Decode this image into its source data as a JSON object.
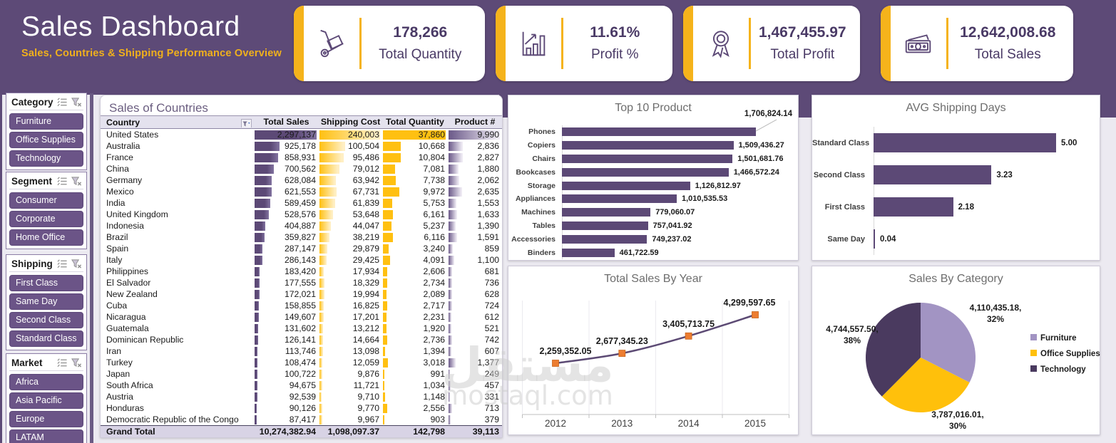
{
  "header": {
    "title": "Sales Dashboard",
    "subtitle": "Sales, Countries & Shipping Performance Overview",
    "kpis": [
      {
        "icon": "hand-truck-icon",
        "value": "178,266",
        "label": "Total Quantity"
      },
      {
        "icon": "growth-chart-icon",
        "value": "11.61%",
        "label": "Profit %"
      },
      {
        "icon": "award-badge-icon",
        "value": "1,467,455.97",
        "label": "Total Profit"
      },
      {
        "icon": "banknotes-icon",
        "value": "12,642,008.68",
        "label": "Total Sales"
      }
    ]
  },
  "slicers": [
    {
      "title": "Category",
      "items": [
        "Furniture",
        "Office Supplies",
        "Technology"
      ]
    },
    {
      "title": "Segment",
      "items": [
        "Consumer",
        "Corporate",
        "Home Office"
      ]
    },
    {
      "title": "Shipping",
      "items": [
        "First Class",
        "Same Day",
        "Second Class",
        "Standard Class"
      ]
    },
    {
      "title": "Market",
      "items": [
        "Africa",
        "Asia Pacific",
        "Europe",
        "LATAM"
      ]
    }
  ],
  "table": {
    "title": "Sales of Countries",
    "columns": [
      "Country",
      "Total Sales",
      "Shipping Cost",
      "Total Quantity",
      "Product #"
    ],
    "rows": [
      [
        "United States",
        "2,297,137",
        "240,003",
        "37,860",
        "9,990"
      ],
      [
        "Australia",
        "925,178",
        "100,504",
        "10,668",
        "2,836"
      ],
      [
        "France",
        "858,931",
        "95,486",
        "10,804",
        "2,827"
      ],
      [
        "China",
        "700,562",
        "79,012",
        "7,081",
        "1,880"
      ],
      [
        "Germany",
        "628,084",
        "63,942",
        "7,738",
        "2,062"
      ],
      [
        "Mexico",
        "621,553",
        "67,731",
        "9,972",
        "2,635"
      ],
      [
        "India",
        "589,459",
        "61,839",
        "5,753",
        "1,553"
      ],
      [
        "United Kingdom",
        "528,576",
        "53,648",
        "6,161",
        "1,633"
      ],
      [
        "Indonesia",
        "404,887",
        "44,047",
        "5,237",
        "1,390"
      ],
      [
        "Brazil",
        "359,827",
        "38,219",
        "6,116",
        "1,591"
      ],
      [
        "Spain",
        "287,147",
        "29,879",
        "3,240",
        "859"
      ],
      [
        "Italy",
        "286,143",
        "29,425",
        "4,091",
        "1,100"
      ],
      [
        "Philippines",
        "183,420",
        "17,934",
        "2,606",
        "681"
      ],
      [
        "El Salvador",
        "177,555",
        "18,329",
        "2,734",
        "736"
      ],
      [
        "New Zealand",
        "172,021",
        "19,994",
        "2,089",
        "628"
      ],
      [
        "Cuba",
        "158,855",
        "16,825",
        "2,717",
        "724"
      ],
      [
        "Nicaragua",
        "149,607",
        "17,201",
        "2,231",
        "612"
      ],
      [
        "Guatemala",
        "131,602",
        "13,212",
        "1,920",
        "521"
      ],
      [
        "Dominican Republic",
        "126,141",
        "14,664",
        "2,736",
        "742"
      ],
      [
        "Iran",
        "113,746",
        "13,098",
        "1,394",
        "607"
      ],
      [
        "Turkey",
        "108,474",
        "12,059",
        "3,018",
        "1,377"
      ],
      [
        "Japan",
        "100,722",
        "9,876",
        "991",
        "249"
      ],
      [
        "South Africa",
        "94,675",
        "11,721",
        "1,034",
        "457"
      ],
      [
        "Austria",
        "92,539",
        "9,710",
        "1,148",
        "331"
      ],
      [
        "Honduras",
        "90,126",
        "9,770",
        "2,556",
        "713"
      ],
      [
        "Democratic Republic of the Congo",
        "87,417",
        "9,967",
        "903",
        "379"
      ]
    ],
    "grand_total": [
      "Grand Total",
      "10,274,382.94",
      "1,098,097.37",
      "142,798",
      "39,113"
    ]
  },
  "chart_data": [
    {
      "type": "bar",
      "orientation": "horizontal",
      "title": "Top 10 Product",
      "categories": [
        "Phones",
        "Copiers",
        "Chairs",
        "Bookcases",
        "Storage",
        "Appliances",
        "Machines",
        "Tables",
        "Accessories",
        "Binders"
      ],
      "values": [
        1706824.14,
        1509436.27,
        1501681.76,
        1466572.24,
        1126812.97,
        1010535.53,
        779060.07,
        757041.92,
        749237.02,
        461722.59
      ],
      "labels": [
        "1,706,824.14",
        "1,509,436.27",
        "1,501,681.76",
        "1,466,572.24",
        "1,126,812.97",
        "1,010,535.53",
        "779,060.07",
        "757,041.92",
        "749,237.02",
        "461,722.59"
      ],
      "xlim": [
        0,
        1706824.14
      ],
      "bar_color": "#5C4976"
    },
    {
      "type": "bar",
      "orientation": "horizontal",
      "title": "AVG Shipping Days",
      "categories": [
        "Standard Class",
        "Second Class",
        "First Class",
        "Same Day"
      ],
      "values": [
        5.0,
        3.23,
        2.18,
        0.04
      ],
      "labels": [
        "5.00",
        "3.23",
        "2.18",
        "0.04"
      ],
      "xlim": [
        0,
        5.3
      ],
      "bar_color": "#5C4976"
    },
    {
      "type": "line",
      "title": "Total Sales By Year",
      "x": [
        "2012",
        "2013",
        "2014",
        "2015"
      ],
      "values": [
        2259352.05,
        2677345.23,
        3405713.75,
        4299597.65
      ],
      "labels": [
        "2,259,352.05",
        "2,677,345.23",
        "3,405,713.75",
        "4,299,597.65"
      ],
      "line_color": "#5C4A74",
      "marker": "square",
      "marker_color": "#ED7D31",
      "grid": "vertical"
    },
    {
      "type": "pie",
      "title": "Sales By Category",
      "slices": [
        {
          "name": "Furniture",
          "value": 4110435.18,
          "label": "4,110,435.18,",
          "pct_label": "32%",
          "color": "#A294C3"
        },
        {
          "name": "Office Supplies",
          "value": 3787016.01,
          "label": "3,787,016.01,",
          "pct_label": "30%",
          "color": "#FFC00B"
        },
        {
          "name": "Technology",
          "value": 4744557.5,
          "label": "4,744,557.50,",
          "pct_label": "38%",
          "color": "#4A3A5F"
        }
      ],
      "legend": [
        "Furniture",
        "Office Supplies",
        "Technology"
      ],
      "legend_position": "right"
    }
  ],
  "watermark": {
    "arabic": "مستقل",
    "latin": "mostaql.com"
  },
  "colors": {
    "header_purple": "#5D4A77",
    "accent_gold": "#F5B31B",
    "bar_purple": "#5C4976",
    "bar_gold": "#FFC011",
    "slicer_button": "#6B5487",
    "kpi_text": "#4A3A66",
    "marker_orange": "#ED7D31"
  }
}
